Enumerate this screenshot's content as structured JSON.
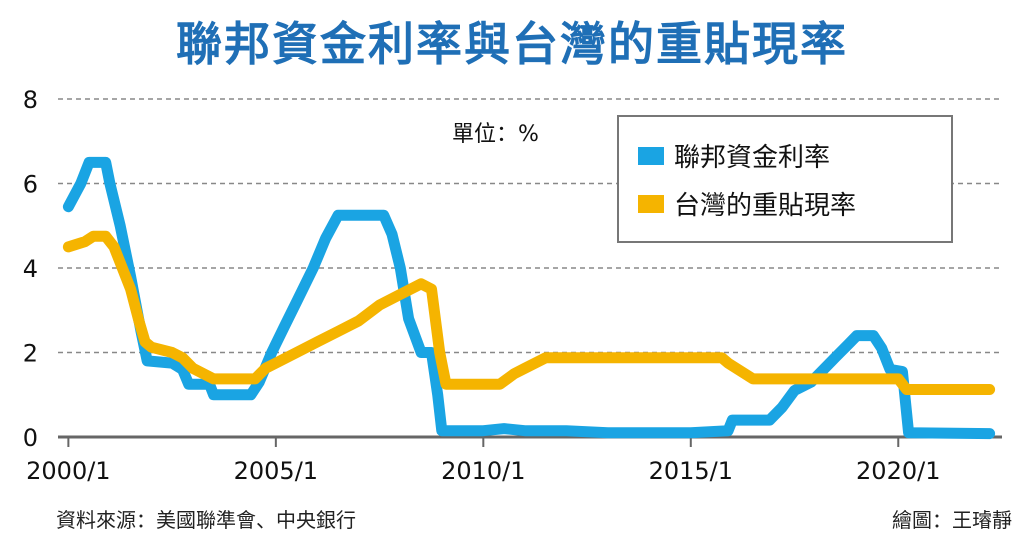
{
  "title": "聯邦資金利率與台灣的重貼現率",
  "unit_label": "單位：%",
  "source": "資料來源：美國聯準會、中央銀行",
  "credit": "繪圖：王璿靜",
  "colors": {
    "fed": "#1aa4e3",
    "taiwan": "#f5b400",
    "grid": "#888888",
    "axis": "#666666",
    "title": "#1f6fb6"
  },
  "chart_data": {
    "type": "line",
    "title": "聯邦資金利率與台灣的重貼現率",
    "ylabel": "",
    "xlabel": "",
    "ylim": [
      0,
      8
    ],
    "xlim": [
      1999.75,
      2022.5
    ],
    "yticks": [
      0,
      2,
      4,
      6,
      8
    ],
    "xticks": [
      {
        "value": 2000,
        "label": "2000/1"
      },
      {
        "value": 2005,
        "label": "2005/1"
      },
      {
        "value": 2010,
        "label": "2010/1"
      },
      {
        "value": 2015,
        "label": "2015/1"
      },
      {
        "value": 2020,
        "label": "2020/1"
      }
    ],
    "grid": "horizontal dashed",
    "legend_position": "top-right",
    "series": [
      {
        "name": "聯邦資金利率",
        "color": "#1aa4e3",
        "points": [
          [
            2000.0,
            5.45
          ],
          [
            2000.3,
            6.0
          ],
          [
            2000.5,
            6.5
          ],
          [
            2000.9,
            6.5
          ],
          [
            2001.0,
            6.0
          ],
          [
            2001.25,
            5.0
          ],
          [
            2001.5,
            3.8
          ],
          [
            2001.75,
            2.5
          ],
          [
            2001.9,
            1.8
          ],
          [
            2002.5,
            1.75
          ],
          [
            2002.75,
            1.6
          ],
          [
            2002.9,
            1.25
          ],
          [
            2003.4,
            1.25
          ],
          [
            2003.5,
            1.0
          ],
          [
            2004.4,
            1.0
          ],
          [
            2004.6,
            1.3
          ],
          [
            2004.9,
            2.0
          ],
          [
            2005.2,
            2.6
          ],
          [
            2005.5,
            3.2
          ],
          [
            2005.9,
            4.0
          ],
          [
            2006.2,
            4.7
          ],
          [
            2006.5,
            5.25
          ],
          [
            2007.6,
            5.25
          ],
          [
            2007.8,
            4.8
          ],
          [
            2008.0,
            4.0
          ],
          [
            2008.2,
            2.8
          ],
          [
            2008.5,
            2.0
          ],
          [
            2008.75,
            2.0
          ],
          [
            2008.9,
            1.0
          ],
          [
            2009.0,
            0.15
          ],
          [
            2010.0,
            0.15
          ],
          [
            2010.5,
            0.2
          ],
          [
            2011.0,
            0.15
          ],
          [
            2012.0,
            0.15
          ],
          [
            2013.0,
            0.1
          ],
          [
            2014.0,
            0.1
          ],
          [
            2015.0,
            0.1
          ],
          [
            2015.9,
            0.15
          ],
          [
            2016.0,
            0.4
          ],
          [
            2016.9,
            0.4
          ],
          [
            2017.2,
            0.7
          ],
          [
            2017.5,
            1.1
          ],
          [
            2017.9,
            1.3
          ],
          [
            2018.2,
            1.6
          ],
          [
            2018.5,
            1.9
          ],
          [
            2018.8,
            2.2
          ],
          [
            2019.0,
            2.4
          ],
          [
            2019.4,
            2.4
          ],
          [
            2019.6,
            2.1
          ],
          [
            2019.8,
            1.6
          ],
          [
            2020.1,
            1.55
          ],
          [
            2020.25,
            0.1
          ],
          [
            2022.2,
            0.08
          ]
        ]
      },
      {
        "name": "台灣的重貼現率",
        "color": "#f5b400",
        "points": [
          [
            2000.0,
            4.5
          ],
          [
            2000.4,
            4.625
          ],
          [
            2000.6,
            4.75
          ],
          [
            2000.9,
            4.75
          ],
          [
            2001.1,
            4.5
          ],
          [
            2001.3,
            4.0
          ],
          [
            2001.5,
            3.5
          ],
          [
            2001.7,
            2.75
          ],
          [
            2001.85,
            2.25
          ],
          [
            2002.0,
            2.125
          ],
          [
            2002.5,
            2.0
          ],
          [
            2002.75,
            1.875
          ],
          [
            2003.0,
            1.625
          ],
          [
            2003.5,
            1.375
          ],
          [
            2004.5,
            1.375
          ],
          [
            2004.75,
            1.625
          ],
          [
            2005.0,
            1.75
          ],
          [
            2005.5,
            2.0
          ],
          [
            2006.0,
            2.25
          ],
          [
            2006.5,
            2.5
          ],
          [
            2007.0,
            2.75
          ],
          [
            2007.5,
            3.125
          ],
          [
            2008.0,
            3.375
          ],
          [
            2008.5,
            3.625
          ],
          [
            2008.75,
            3.5
          ],
          [
            2008.95,
            2.0
          ],
          [
            2009.1,
            1.25
          ],
          [
            2010.4,
            1.25
          ],
          [
            2010.75,
            1.5
          ],
          [
            2011.0,
            1.625
          ],
          [
            2011.5,
            1.875
          ],
          [
            2015.75,
            1.875
          ],
          [
            2015.9,
            1.75
          ],
          [
            2016.3,
            1.5
          ],
          [
            2016.5,
            1.375
          ],
          [
            2020.0,
            1.375
          ],
          [
            2020.2,
            1.125
          ],
          [
            2022.2,
            1.125
          ]
        ]
      }
    ]
  }
}
